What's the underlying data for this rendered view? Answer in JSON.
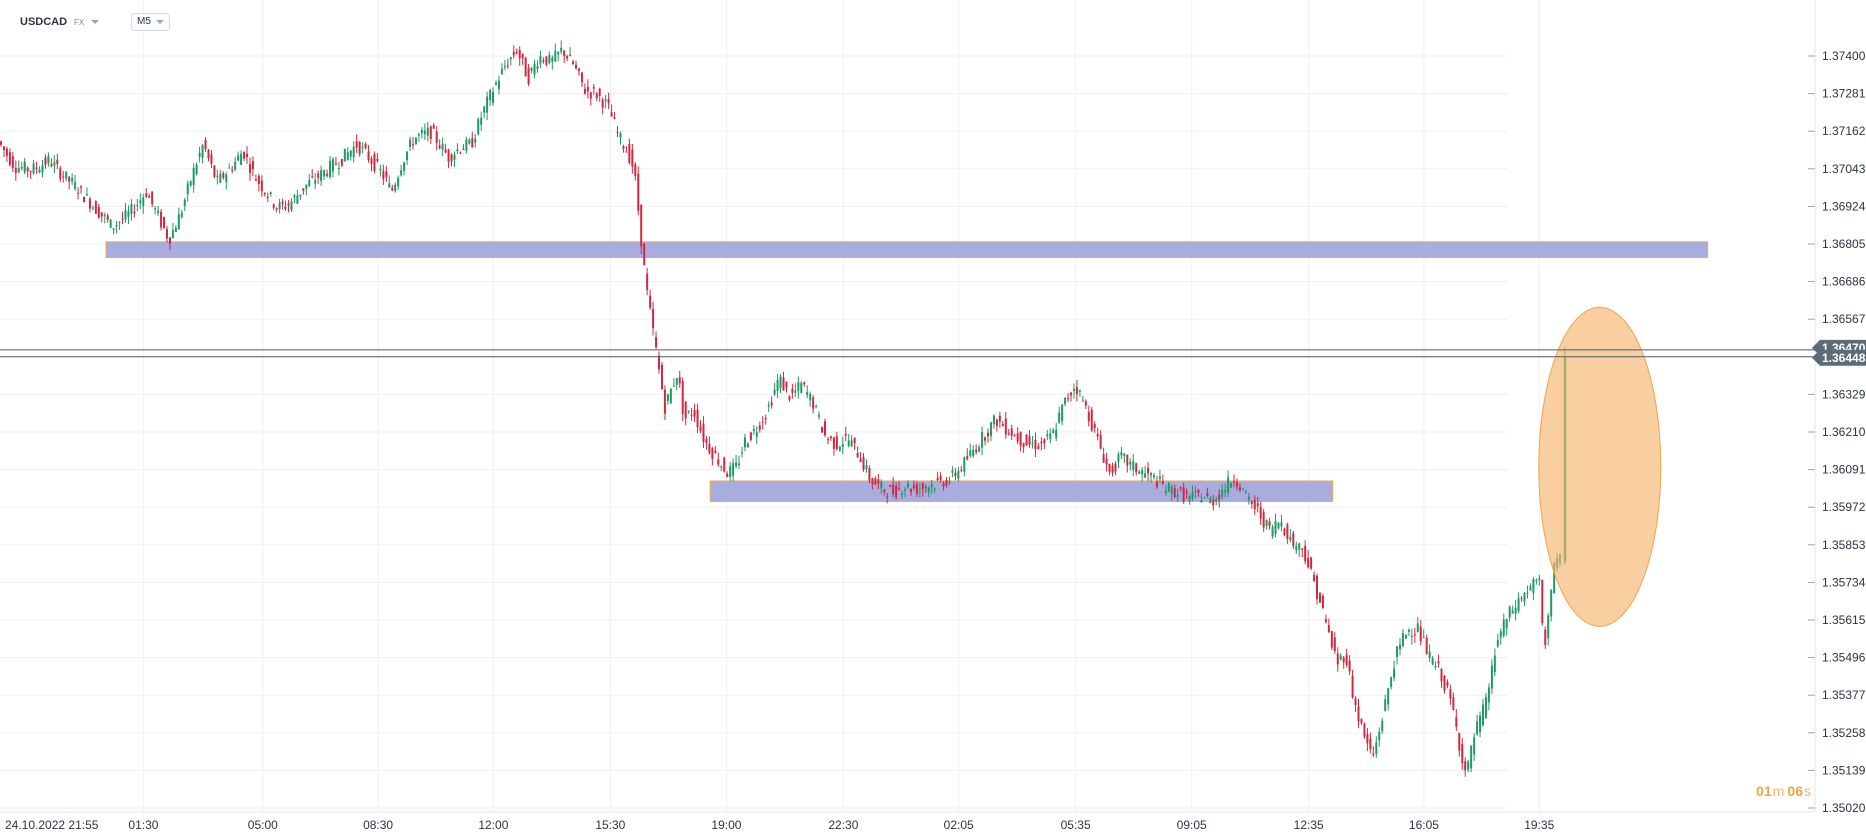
{
  "header": {
    "symbol": "USDCAD",
    "market": "FX",
    "timeframe": "M5"
  },
  "countdown": {
    "minutes": "01",
    "minutes_unit": "m",
    "seconds": "06",
    "seconds_unit": "s"
  },
  "colors": {
    "up": "#1e9a63",
    "down": "#d0283d",
    "zone_fill": "#a9acdf",
    "zone_border": "#f2a94b",
    "highlight": "#f6b36e",
    "price_tag": "#5d6b78"
  },
  "chart_data": {
    "type": "candlestick",
    "symbol": "USDCAD",
    "timeframe": "M5",
    "y_axis": {
      "ylim": [
        1.3502,
        1.3746
      ],
      "ticks": [
        "1.37400",
        "1.37281",
        "1.37162",
        "1.37043",
        "1.36924",
        "1.36805",
        "1.36686",
        "1.36567",
        "1.36329",
        "1.36210",
        "1.36091",
        "1.35972",
        "1.35853",
        "1.35734",
        "1.35615",
        "1.35496",
        "1.35377",
        "1.35258",
        "1.35139",
        "1.35020"
      ]
    },
    "x_axis": {
      "first_label": "24.10.2022  21:55",
      "ticks": [
        "01:30",
        "05:00",
        "08:30",
        "12:00",
        "15:30",
        "19:00",
        "22:30",
        "02:05",
        "05:35",
        "09:05",
        "12:35",
        "16:05",
        "19:35"
      ]
    },
    "price_path": [
      [
        0,
        1.3713
      ],
      [
        15,
        1.3705
      ],
      [
        30,
        1.3704
      ],
      [
        45,
        1.3707
      ],
      [
        55,
        1.3703
      ],
      [
        70,
        1.3698
      ],
      [
        85,
        1.3692
      ],
      [
        100,
        1.3686
      ],
      [
        115,
        1.369
      ],
      [
        130,
        1.3697
      ],
      [
        142,
        1.3688
      ],
      [
        150,
        1.3682
      ],
      [
        160,
        1.369
      ],
      [
        170,
        1.3702
      ],
      [
        180,
        1.3712
      ],
      [
        192,
        1.37
      ],
      [
        205,
        1.3705
      ],
      [
        215,
        1.371
      ],
      [
        225,
        1.3702
      ],
      [
        235,
        1.3697
      ],
      [
        245,
        1.3692
      ],
      [
        255,
        1.3693
      ],
      [
        270,
        1.3699
      ],
      [
        285,
        1.3703
      ],
      [
        300,
        1.3707
      ],
      [
        315,
        1.3712
      ],
      [
        330,
        1.3706
      ],
      [
        340,
        1.3701
      ],
      [
        345,
        1.3697
      ],
      [
        355,
        1.3707
      ],
      [
        365,
        1.3714
      ],
      [
        380,
        1.3716
      ],
      [
        395,
        1.3708
      ],
      [
        405,
        1.3711
      ],
      [
        415,
        1.3712
      ],
      [
        425,
        1.3722
      ],
      [
        435,
        1.373
      ],
      [
        445,
        1.3737
      ],
      [
        455,
        1.3742
      ],
      [
        465,
        1.3733
      ],
      [
        475,
        1.374
      ],
      [
        485,
        1.3738
      ],
      [
        495,
        1.3742
      ],
      [
        505,
        1.3737
      ],
      [
        515,
        1.3729
      ],
      [
        525,
        1.3728
      ],
      [
        535,
        1.3724
      ],
      [
        545,
        1.3714
      ],
      [
        552,
        1.371
      ],
      [
        558,
        1.3704
      ],
      [
        562,
        1.369
      ],
      [
        566,
        1.3675
      ],
      [
        570,
        1.3663
      ],
      [
        575,
        1.3652
      ],
      [
        580,
        1.364
      ],
      [
        585,
        1.3629
      ],
      [
        590,
        1.3634
      ],
      [
        596,
        1.364
      ],
      [
        602,
        1.3625
      ],
      [
        610,
        1.3628
      ],
      [
        620,
        1.3618
      ],
      [
        630,
        1.3613
      ],
      [
        640,
        1.3608
      ],
      [
        648,
        1.361
      ],
      [
        655,
        1.3618
      ],
      [
        665,
        1.3622
      ],
      [
        675,
        1.3628
      ],
      [
        685,
        1.3638
      ],
      [
        695,
        1.3632
      ],
      [
        705,
        1.3636
      ],
      [
        715,
        1.363
      ],
      [
        725,
        1.362
      ],
      [
        735,
        1.3617
      ],
      [
        745,
        1.3619
      ],
      [
        755,
        1.3614
      ],
      [
        765,
        1.3606
      ],
      [
        775,
        1.3603
      ],
      [
        785,
        1.3602
      ],
      [
        795,
        1.3604
      ],
      [
        805,
        1.3603
      ],
      [
        815,
        1.3604
      ],
      [
        825,
        1.3605
      ],
      [
        835,
        1.3606
      ],
      [
        845,
        1.361
      ],
      [
        855,
        1.3615
      ],
      [
        865,
        1.362
      ],
      [
        875,
        1.3625
      ],
      [
        885,
        1.3622
      ],
      [
        895,
        1.3619
      ],
      [
        905,
        1.3617
      ],
      [
        915,
        1.3617
      ],
      [
        925,
        1.362
      ],
      [
        935,
        1.363
      ],
      [
        945,
        1.3636
      ],
      [
        955,
        1.3628
      ],
      [
        965,
        1.3618
      ],
      [
        975,
        1.3608
      ],
      [
        985,
        1.3613
      ],
      [
        995,
        1.361
      ],
      [
        1005,
        1.3608
      ],
      [
        1015,
        1.3606
      ],
      [
        1025,
        1.3603
      ],
      [
        1035,
        1.3602
      ],
      [
        1045,
        1.36
      ],
      [
        1055,
        1.3601
      ],
      [
        1065,
        1.3599
      ],
      [
        1075,
        1.3603
      ],
      [
        1085,
        1.3607
      ],
      [
        1095,
        1.36
      ],
      [
        1105,
        1.3596
      ],
      [
        1115,
        1.359
      ],
      [
        1125,
        1.3593
      ],
      [
        1135,
        1.3586
      ],
      [
        1145,
        1.3584
      ],
      [
        1152,
        1.3576
      ],
      [
        1160,
        1.3567
      ],
      [
        1168,
        1.3556
      ],
      [
        1175,
        1.3548
      ],
      [
        1182,
        1.3551
      ],
      [
        1190,
        1.3535
      ],
      [
        1198,
        1.3525
      ],
      [
        1206,
        1.3518
      ],
      [
        1215,
        1.3532
      ],
      [
        1225,
        1.3549
      ],
      [
        1235,
        1.3558
      ],
      [
        1245,
        1.3559
      ],
      [
        1255,
        1.355
      ],
      [
        1265,
        1.3545
      ],
      [
        1275,
        1.3535
      ],
      [
        1282,
        1.3522
      ],
      [
        1288,
        1.3512
      ],
      [
        1295,
        1.3525
      ],
      [
        1305,
        1.3535
      ],
      [
        1315,
        1.3555
      ],
      [
        1325,
        1.3563
      ],
      [
        1335,
        1.3568
      ],
      [
        1345,
        1.3572
      ],
      [
        1352,
        1.3574
      ],
      [
        1356,
        1.355
      ],
      [
        1360,
        1.3565
      ],
      [
        1365,
        1.3578
      ],
      [
        1370,
        1.358
      ]
    ],
    "final_candle": {
      "x": 1370,
      "open": 1.358,
      "high": 1.3648,
      "low": 1.3579,
      "close": 1.36448
    },
    "current_price": "1.36448",
    "ask_price": "1.36470",
    "support_resistance_zones": [
      {
        "from_x": 93,
        "to_x": 1498,
        "price_low": 1.36762,
        "price_high": 1.36812
      },
      {
        "from_x": 623,
        "to_x": 1169,
        "price_low": 1.3599,
        "price_high": 1.36055
      }
    ],
    "highlight_ellipse": {
      "center_x": 1377,
      "center_price": 1.361,
      "rx": 61,
      "ry_price": 0.00505
    },
    "grid": true,
    "legend": "none"
  }
}
